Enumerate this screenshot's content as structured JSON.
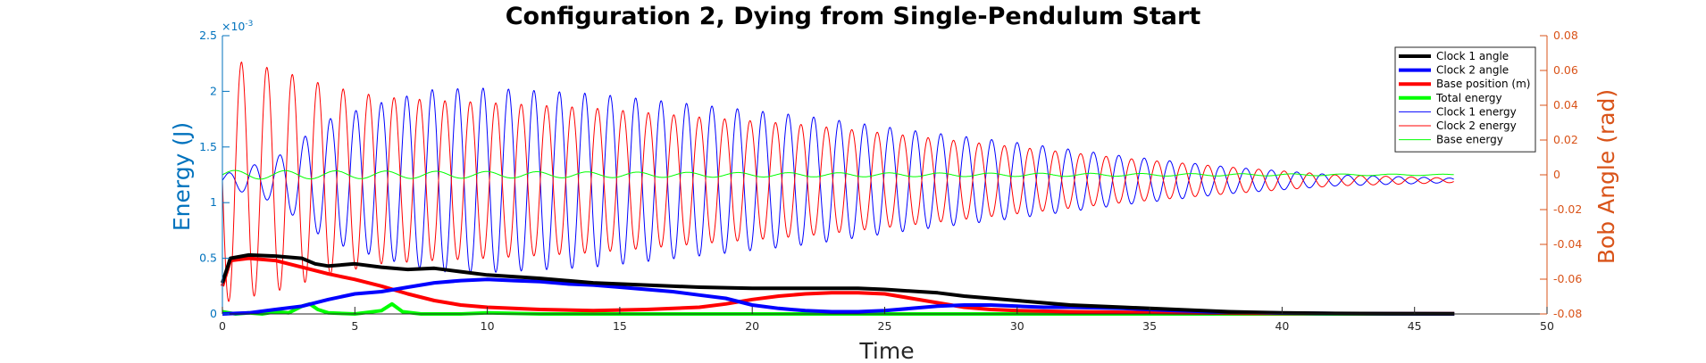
{
  "chart_data": {
    "type": "line",
    "title": "Configuration 2, Dying from Single-Pendulum Start",
    "xlabel": "Time",
    "ylabel_left": "Energy (J)",
    "ylabel_right": "Bob Angle (rad)",
    "left_exponent_label": "×10",
    "left_exponent_power": "-3",
    "xlim": [
      0,
      50
    ],
    "ylim_left": [
      0,
      2.5
    ],
    "ylim_right": [
      -0.08,
      0.08
    ],
    "x_ticks": [
      "0",
      "5",
      "10",
      "15",
      "20",
      "25",
      "30",
      "35",
      "40",
      "45",
      "50"
    ],
    "y_left_ticks": [
      "0",
      "0.5",
      "1",
      "1.5",
      "2",
      "2.5"
    ],
    "y_right_ticks": [
      "-0.08",
      "-0.06",
      "-0.04",
      "-0.02",
      "0",
      "0.02",
      "0.04",
      "0.06",
      "0.08"
    ],
    "left_axis_color": "#0072BD",
    "right_axis_color": "#D95319",
    "legend_position": "top-right",
    "legend": [
      {
        "name": "Clock 1 angle",
        "color": "#000000",
        "width": 4
      },
      {
        "name": "Clock 2 angle",
        "color": "#0000ff",
        "width": 4
      },
      {
        "name": "Base position (m)",
        "color": "#ff0000",
        "width": 4
      },
      {
        "name": "Total energy",
        "color": "#00ff00",
        "width": 4
      },
      {
        "name": "Clock 1 energy",
        "color": "#0000ff",
        "width": 1
      },
      {
        "name": "Clock 2 energy",
        "color": "#ff0000",
        "width": 1
      },
      {
        "name": "Base energy",
        "color": "#00ff00",
        "width": 1
      }
    ],
    "series": [
      {
        "name": "Clock 1 angle",
        "axis": "left",
        "color": "#000000",
        "width": 4,
        "points": [
          [
            0,
            0.28
          ],
          [
            0.3,
            0.5
          ],
          [
            1,
            0.53
          ],
          [
            2,
            0.52
          ],
          [
            3,
            0.5
          ],
          [
            3.5,
            0.45
          ],
          [
            4,
            0.43
          ],
          [
            5,
            0.45
          ],
          [
            6,
            0.42
          ],
          [
            7,
            0.4
          ],
          [
            8,
            0.41
          ],
          [
            9,
            0.38
          ],
          [
            10,
            0.35
          ],
          [
            12,
            0.32
          ],
          [
            14,
            0.28
          ],
          [
            16,
            0.26
          ],
          [
            18,
            0.24
          ],
          [
            20,
            0.23
          ],
          [
            22,
            0.23
          ],
          [
            24,
            0.23
          ],
          [
            25,
            0.22
          ],
          [
            27,
            0.19
          ],
          [
            28,
            0.16
          ],
          [
            30,
            0.12
          ],
          [
            32,
            0.08
          ],
          [
            34,
            0.06
          ],
          [
            36,
            0.04
          ],
          [
            38,
            0.02
          ],
          [
            40,
            0.01
          ],
          [
            42,
            0.005
          ],
          [
            44,
            0.003
          ],
          [
            46.5,
            0.002
          ]
        ]
      },
      {
        "name": "Clock 2 angle",
        "axis": "left",
        "color": "#0000ff",
        "width": 4,
        "points": [
          [
            0,
            0
          ],
          [
            1,
            0.01
          ],
          [
            2,
            0.04
          ],
          [
            3,
            0.07
          ],
          [
            4,
            0.13
          ],
          [
            5,
            0.18
          ],
          [
            6,
            0.2
          ],
          [
            7,
            0.24
          ],
          [
            8,
            0.28
          ],
          [
            9,
            0.3
          ],
          [
            10,
            0.31
          ],
          [
            11,
            0.3
          ],
          [
            12,
            0.29
          ],
          [
            13,
            0.27
          ],
          [
            14,
            0.26
          ],
          [
            15,
            0.24
          ],
          [
            16,
            0.22
          ],
          [
            17,
            0.2
          ],
          [
            18,
            0.17
          ],
          [
            19,
            0.14
          ],
          [
            20,
            0.08
          ],
          [
            21,
            0.05
          ],
          [
            22,
            0.03
          ],
          [
            23,
            0.02
          ],
          [
            24,
            0.02
          ],
          [
            25,
            0.03
          ],
          [
            26,
            0.05
          ],
          [
            27,
            0.07
          ],
          [
            28,
            0.08
          ],
          [
            29,
            0.08
          ],
          [
            30,
            0.07
          ],
          [
            31,
            0.06
          ],
          [
            32,
            0.06
          ],
          [
            34,
            0.05
          ],
          [
            36,
            0.03
          ],
          [
            38,
            0.015
          ],
          [
            40,
            0.008
          ],
          [
            42,
            0.004
          ],
          [
            44,
            0.002
          ],
          [
            46.5,
            0.001
          ]
        ]
      },
      {
        "name": "Base position (m)",
        "axis": "left",
        "color": "#ff0000",
        "width": 4,
        "points": [
          [
            0,
            0.25
          ],
          [
            0.3,
            0.48
          ],
          [
            1,
            0.5
          ],
          [
            2,
            0.48
          ],
          [
            3,
            0.42
          ],
          [
            4,
            0.36
          ],
          [
            5,
            0.31
          ],
          [
            6,
            0.25
          ],
          [
            7,
            0.18
          ],
          [
            8,
            0.12
          ],
          [
            9,
            0.08
          ],
          [
            10,
            0.06
          ],
          [
            12,
            0.04
          ],
          [
            14,
            0.03
          ],
          [
            16,
            0.04
          ],
          [
            18,
            0.06
          ],
          [
            19,
            0.09
          ],
          [
            20,
            0.13
          ],
          [
            21,
            0.16
          ],
          [
            22,
            0.18
          ],
          [
            23,
            0.19
          ],
          [
            24,
            0.19
          ],
          [
            25,
            0.18
          ],
          [
            26,
            0.14
          ],
          [
            27,
            0.1
          ],
          [
            28,
            0.06
          ],
          [
            29,
            0.04
          ],
          [
            30,
            0.03
          ],
          [
            32,
            0.02
          ],
          [
            34,
            0.015
          ],
          [
            36,
            0.01
          ],
          [
            40,
            0.005
          ],
          [
            46.5,
            0.002
          ]
        ]
      },
      {
        "name": "Total energy",
        "axis": "left",
        "color": "#00ff00",
        "width": 4,
        "points": [
          [
            0,
            0.02
          ],
          [
            0.5,
            0.0
          ],
          [
            1,
            0.01
          ],
          [
            1.5,
            0.0
          ],
          [
            2,
            0.02
          ],
          [
            2.5,
            0.01
          ],
          [
            3,
            0.07
          ],
          [
            3.3,
            0.09
          ],
          [
            3.6,
            0.04
          ],
          [
            4,
            0.01
          ],
          [
            5,
            0.0
          ],
          [
            6,
            0.03
          ],
          [
            6.4,
            0.09
          ],
          [
            6.8,
            0.02
          ],
          [
            7.5,
            0.0
          ],
          [
            9,
            0.0
          ],
          [
            10,
            0.01
          ],
          [
            12,
            0.0
          ],
          [
            15,
            0.0
          ],
          [
            20,
            0.0
          ],
          [
            25,
            0.0
          ],
          [
            30,
            0.0
          ],
          [
            35,
            0.0
          ],
          [
            40,
            0.0
          ],
          [
            46.5,
            0.0
          ]
        ]
      },
      {
        "name": "Clock 1 energy",
        "axis": "left",
        "color": "#0000ff",
        "width": 1,
        "generator": "oscillation",
        "center": 1.2,
        "period": 0.96,
        "amp_points": [
          [
            0,
            0.05
          ],
          [
            2,
            0.2
          ],
          [
            4,
            0.55
          ],
          [
            6,
            0.7
          ],
          [
            8,
            0.82
          ],
          [
            10,
            0.83
          ],
          [
            14,
            0.78
          ],
          [
            18,
            0.68
          ],
          [
            22,
            0.58
          ],
          [
            26,
            0.45
          ],
          [
            30,
            0.34
          ],
          [
            34,
            0.22
          ],
          [
            38,
            0.12
          ],
          [
            42,
            0.05
          ],
          [
            46.5,
            0.02
          ]
        ]
      },
      {
        "name": "Clock 2 energy",
        "axis": "left",
        "color": "#ff0000",
        "width": 1,
        "generator": "oscillation",
        "center": 1.2,
        "period": 0.96,
        "amp_points": [
          [
            0,
            1.1
          ],
          [
            1,
            1.05
          ],
          [
            2,
            1.0
          ],
          [
            4,
            0.85
          ],
          [
            6,
            0.75
          ],
          [
            8,
            0.72
          ],
          [
            10,
            0.7
          ],
          [
            14,
            0.65
          ],
          [
            18,
            0.57
          ],
          [
            22,
            0.5
          ],
          [
            26,
            0.4
          ],
          [
            30,
            0.3
          ],
          [
            34,
            0.2
          ],
          [
            38,
            0.12
          ],
          [
            42,
            0.05
          ],
          [
            46.5,
            0.02
          ]
        ]
      },
      {
        "name": "Base energy",
        "axis": "left",
        "color": "#00ff00",
        "width": 1,
        "generator": "oscillation",
        "center": 1.25,
        "period": 1.9,
        "amp_points": [
          [
            0,
            0.04
          ],
          [
            10,
            0.03
          ],
          [
            20,
            0.02
          ],
          [
            30,
            0.015
          ],
          [
            46.5,
            0.005
          ]
        ]
      }
    ]
  }
}
